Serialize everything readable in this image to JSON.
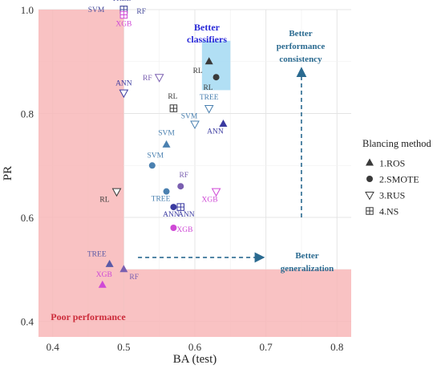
{
  "chart_data": {
    "type": "scatter",
    "xlabel": "BA (test)",
    "ylabel": "PR",
    "xlim": [
      0.38,
      0.82
    ],
    "ylim": [
      0.37,
      1.0
    ],
    "xticks": [
      "0.4",
      "0.5",
      "0.6",
      "0.7",
      "0.8"
    ],
    "yticks": [
      "0.4",
      "0.6",
      "0.8",
      "1.0"
    ],
    "grid": true,
    "legend": {
      "title": "Blancing method",
      "placement": "right",
      "entries": [
        {
          "label": "1.ROS",
          "marker": "triangle-up"
        },
        {
          "label": "2.SMOTE",
          "marker": "circle"
        },
        {
          "label": "3.RUS",
          "marker": "triangle-down-open"
        },
        {
          "label": "4.NS",
          "marker": "square-plus"
        }
      ]
    },
    "regions": [
      {
        "label": "Poor performance",
        "color": "#f8b7b9"
      },
      {
        "label": "Better classifiers",
        "color": "#a9dcf3"
      }
    ],
    "annotations": [
      "Better classifiers",
      "Better performance consistency",
      "Better generalization",
      "Poor performance"
    ],
    "points": [
      {
        "x": 0.5,
        "y": 1.0,
        "marker": "square-plus",
        "label": "TREE",
        "color": "#4a4f9e"
      },
      {
        "x": 0.5,
        "y": 1.0,
        "marker": "square-plus",
        "label": "SVM",
        "color": "#4a4f9e"
      },
      {
        "x": 0.5,
        "y": 1.0,
        "marker": "square-plus",
        "label": "RF",
        "color": "#4a4f9e"
      },
      {
        "x": 0.5,
        "y": 0.99,
        "marker": "square-plus",
        "label": "XGB",
        "color": "#cf49d6"
      },
      {
        "x": 0.62,
        "y": 0.9,
        "marker": "triangle-up",
        "label": "RL",
        "color": "#3a3a3a"
      },
      {
        "x": 0.63,
        "y": 0.87,
        "marker": "circle",
        "label": "RL",
        "color": "#3a3a3a"
      },
      {
        "x": 0.55,
        "y": 0.87,
        "marker": "triangle-down-open",
        "label": "RF",
        "color": "#7a5fb0"
      },
      {
        "x": 0.5,
        "y": 0.84,
        "marker": "triangle-down-open",
        "label": "ANN",
        "color": "#3a3aa0"
      },
      {
        "x": 0.57,
        "y": 0.81,
        "marker": "square-plus",
        "label": "RL",
        "color": "#3a3a3a"
      },
      {
        "x": 0.62,
        "y": 0.81,
        "marker": "triangle-down-open",
        "label": "TREE",
        "color": "#4a80b0"
      },
      {
        "x": 0.6,
        "y": 0.78,
        "marker": "triangle-down-open",
        "label": "SVM",
        "color": "#4a80b0"
      },
      {
        "x": 0.64,
        "y": 0.78,
        "marker": "triangle-up",
        "label": "ANN",
        "color": "#3a3aa0"
      },
      {
        "x": 0.56,
        "y": 0.74,
        "marker": "triangle-up",
        "label": "SVM",
        "color": "#4a80b0"
      },
      {
        "x": 0.54,
        "y": 0.7,
        "marker": "circle",
        "label": "SVM",
        "color": "#4a80b0"
      },
      {
        "x": 0.58,
        "y": 0.66,
        "marker": "circle",
        "label": "RF",
        "color": "#7a5fb0"
      },
      {
        "x": 0.56,
        "y": 0.65,
        "marker": "circle",
        "label": "TREE",
        "color": "#4a80b0"
      },
      {
        "x": 0.49,
        "y": 0.65,
        "marker": "triangle-down-open",
        "label": "RL",
        "color": "#3a3a3a"
      },
      {
        "x": 0.63,
        "y": 0.65,
        "marker": "triangle-down-open",
        "label": "XGB",
        "color": "#cf49d6"
      },
      {
        "x": 0.57,
        "y": 0.62,
        "marker": "circle",
        "label": "ANN",
        "color": "#3a3aa0"
      },
      {
        "x": 0.58,
        "y": 0.62,
        "marker": "square-plus",
        "label": "ANN",
        "color": "#3a3aa0"
      },
      {
        "x": 0.57,
        "y": 0.58,
        "marker": "circle",
        "label": "XGB",
        "color": "#cf49d6"
      },
      {
        "x": 0.48,
        "y": 0.51,
        "marker": "triangle-up",
        "label": "TREE",
        "color": "#5a5aa6"
      },
      {
        "x": 0.5,
        "y": 0.5,
        "marker": "triangle-up",
        "label": "RF",
        "color": "#7a5fb0"
      },
      {
        "x": 0.47,
        "y": 0.47,
        "marker": "triangle-up",
        "label": "XGB",
        "color": "#cf49d6"
      }
    ]
  }
}
